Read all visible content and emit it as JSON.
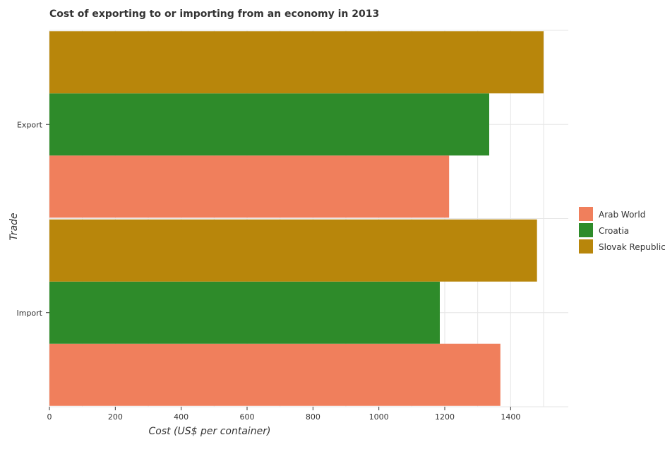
{
  "chart_data": {
    "type": "bar",
    "orientation": "horizontal",
    "title": "Cost of exporting to or importing from an economy in 2013",
    "xlabel": "Cost (US$ per container)",
    "ylabel": "Trade",
    "xlim": [
      0,
      1575
    ],
    "xticks": [
      0,
      200,
      400,
      600,
      800,
      1000,
      1200,
      1400
    ],
    "categories": [
      "Export",
      "Import"
    ],
    "series": [
      {
        "name": "Arab World",
        "color": "#f07f5c",
        "values": [
          1213.25,
          1368.85
        ]
      },
      {
        "name": "Croatia",
        "color": "#2e8b2a",
        "values": [
          1335,
          1185
        ]
      },
      {
        "name": "Slovak Republic",
        "color": "#b8860b",
        "values": [
          1500,
          1480
        ]
      }
    ],
    "grid": true,
    "legend_position": "right"
  }
}
